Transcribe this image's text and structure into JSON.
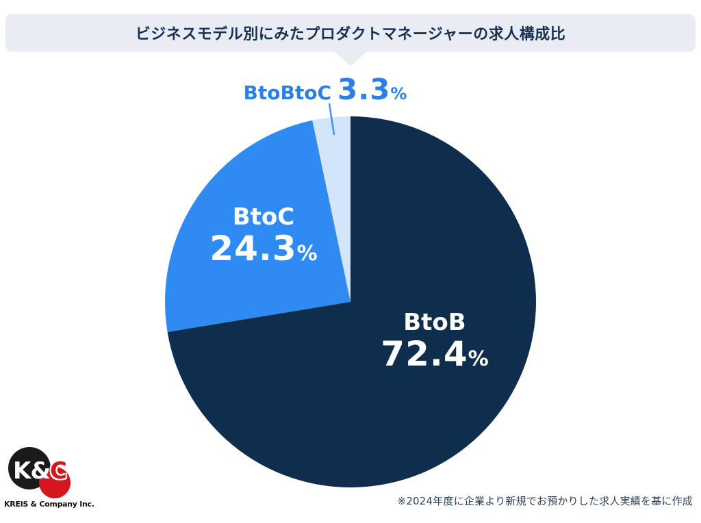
{
  "title": "ビジネスモデル別にみたプロダクトマネージャーの求人構成比",
  "chart_data": {
    "type": "pie",
    "title": "ビジネスモデル別にみたプロダクトマネージャーの求人構成比",
    "unit": "%",
    "start_angle_deg": 0,
    "direction": "clockwise",
    "slices": [
      {
        "label": "BtoB",
        "value": 72.4,
        "color": "#0F2E4E",
        "text_color": "#FFFFFF"
      },
      {
        "label": "BtoC",
        "value": 24.3,
        "color": "#2F8BF1",
        "text_color": "#FFFFFF"
      },
      {
        "label": "BtoBtoC",
        "value": 3.3,
        "color": "#D3E6F9",
        "text_color": "#2B80E8"
      }
    ]
  },
  "logo": {
    "monogram_left": "K&",
    "monogram_right": "C",
    "company": "KREIS & Company Inc."
  },
  "footnote": "※2024年度に企業より新規でお預かりした求人実績を基に作成",
  "colors": {
    "accent_blue": "#2B80E8",
    "dark_navy": "#0F2E4E",
    "bright_blue": "#2F8BF1",
    "light_blue": "#D3E6F9",
    "banner_bg": "#E9EDF3",
    "title_text": "#16304F",
    "footnote_text": "#2E4156",
    "logo_red": "#D6161E",
    "logo_black": "#1A1A1A"
  }
}
